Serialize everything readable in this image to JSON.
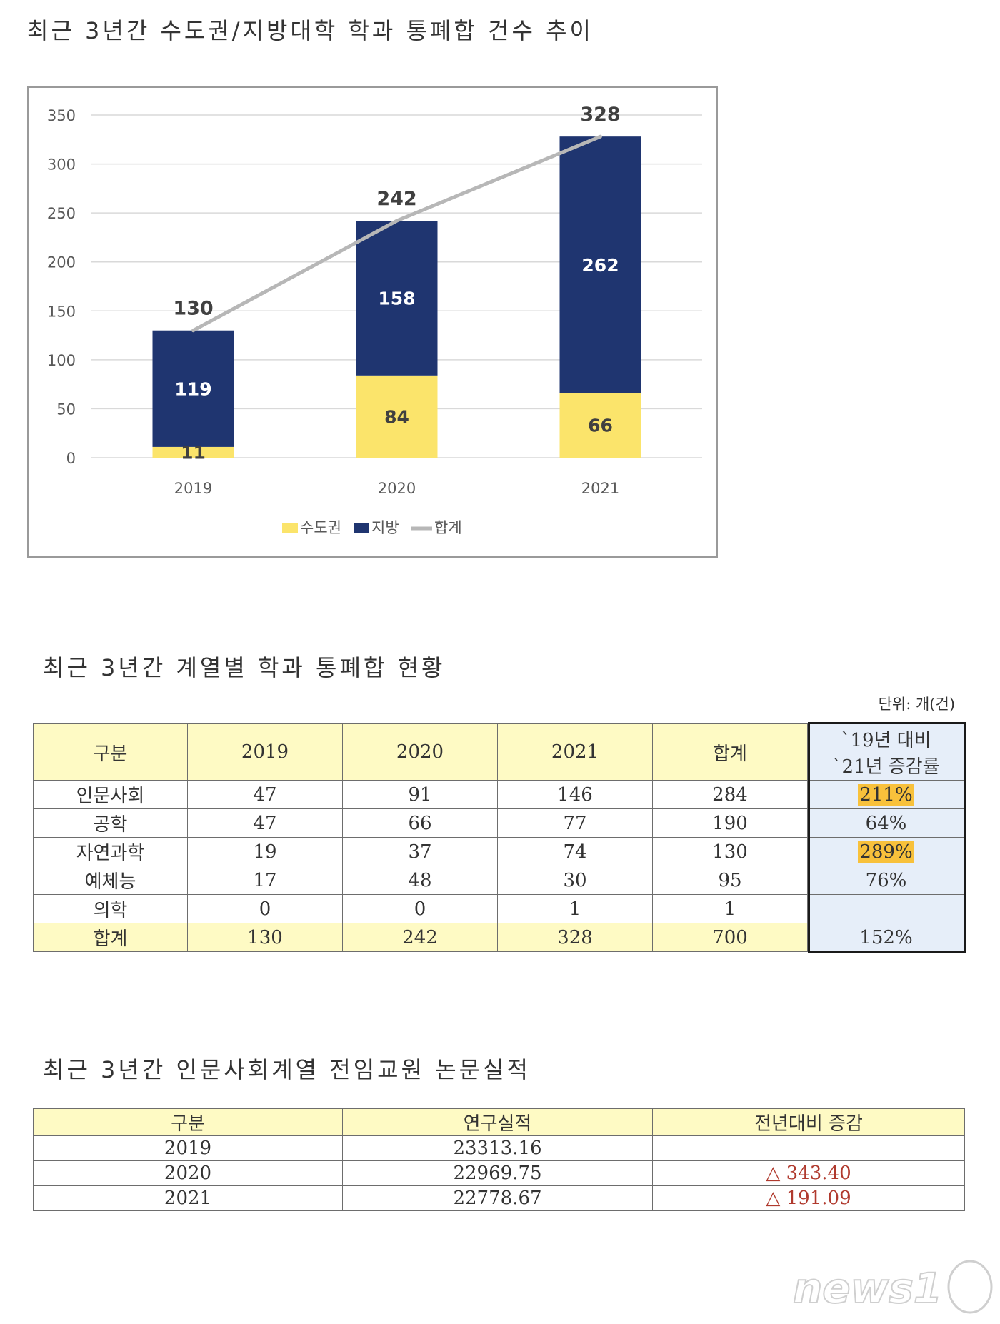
{
  "title1": "최근 3년간 수도권/지방대학 학과 통폐합 건수 추이",
  "title2": "최근 3년간 계열별 학과 통폐합 현황",
  "title3": "최근 3년간 인문사회계열 전임교원 논문실적",
  "unit": "단위: 개(건)",
  "colors": {
    "capital": "#fbe46b",
    "regional": "#1f3570",
    "total": "#b7b7b7"
  },
  "chart_data": {
    "type": "bar",
    "stacked": true,
    "categories": [
      "2019",
      "2020",
      "2021"
    ],
    "series": [
      {
        "name": "수도권",
        "values": [
          11,
          84,
          66
        ]
      },
      {
        "name": "지방",
        "values": [
          119,
          158,
          262
        ]
      }
    ],
    "line_series": {
      "name": "합계",
      "values": [
        130,
        242,
        328
      ]
    },
    "ylim": [
      0,
      350
    ],
    "yticks": [
      "0",
      "50",
      "100",
      "150",
      "200",
      "250",
      "300",
      "350"
    ],
    "grid": true,
    "legend": "bottom"
  },
  "table1": {
    "headers": [
      "구분",
      "2019",
      "2020",
      "2021",
      "합계"
    ],
    "rate_header": [
      "`19년 대비",
      "`21년 증감률"
    ],
    "rows": [
      {
        "label": "인문사회",
        "v2019": "47",
        "v2020": "91",
        "v2021": "146",
        "sum": "284",
        "rate": "211%",
        "highlight": true
      },
      {
        "label": "공학",
        "v2019": "47",
        "v2020": "66",
        "v2021": "77",
        "sum": "190",
        "rate": "64%",
        "highlight": false
      },
      {
        "label": "자연과학",
        "v2019": "19",
        "v2020": "37",
        "v2021": "74",
        "sum": "130",
        "rate": "289%",
        "highlight": true
      },
      {
        "label": "예체능",
        "v2019": "17",
        "v2020": "48",
        "v2021": "30",
        "sum": "95",
        "rate": "76%",
        "highlight": false
      },
      {
        "label": "의학",
        "v2019": "0",
        "v2020": "0",
        "v2021": "1",
        "sum": "1",
        "rate": "",
        "highlight": false
      }
    ],
    "total": {
      "label": "합계",
      "v2019": "130",
      "v2020": "242",
      "v2021": "328",
      "sum": "700",
      "rate": "152%"
    }
  },
  "table2": {
    "headers": [
      "구분",
      "연구실적",
      "전년대비 증감"
    ],
    "rows": [
      {
        "year": "2019",
        "value": "23313.16",
        "change": ""
      },
      {
        "year": "2020",
        "value": "22969.75",
        "change": "△ 343.40"
      },
      {
        "year": "2021",
        "value": "22778.67",
        "change": "△ 191.09"
      }
    ]
  },
  "watermark": "news1"
}
